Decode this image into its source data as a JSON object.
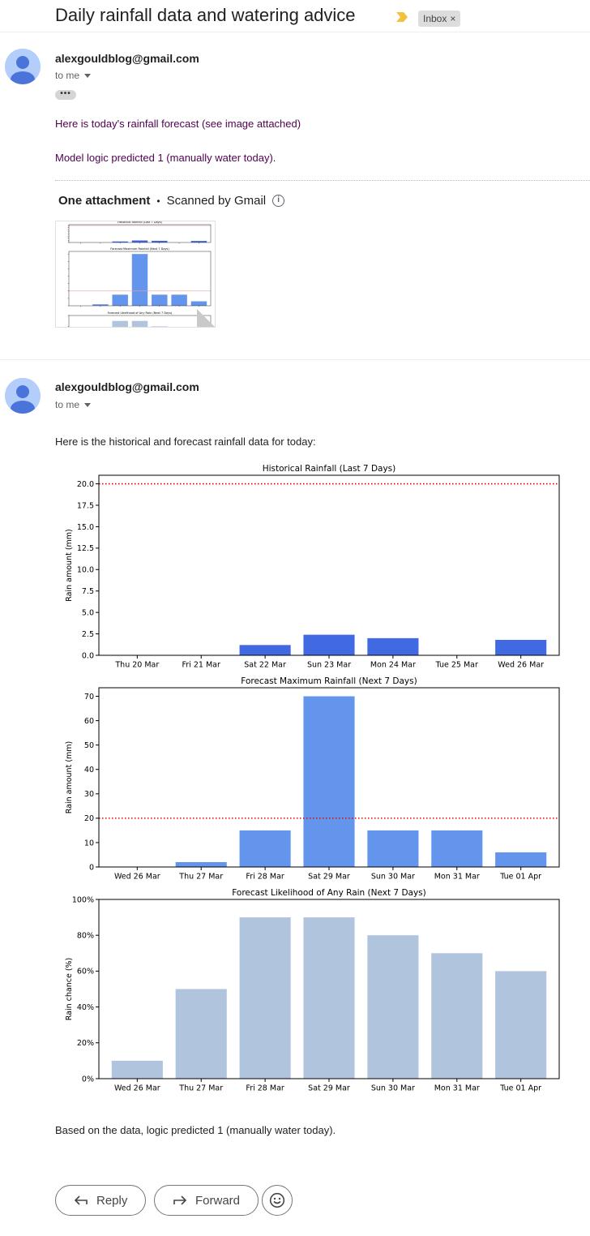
{
  "subject": "Daily rainfall data and watering advice",
  "label_chip": {
    "text": "Inbox",
    "close": "×"
  },
  "colors": {
    "importance": "#f2c13e",
    "link_text": "#500050",
    "hist_bar": "#4169e1",
    "fc_bar": "#6495ed",
    "prob_bar": "#b0c4de",
    "threshold": "#e00000"
  },
  "messages": [
    {
      "sender": "alexgouldblog@gmail.com",
      "to": "to me",
      "ellipsis": "•••",
      "lines": [
        "Here is today's rainfall forecast (see image attached)",
        "Model logic predicted 1 (manually water today)."
      ],
      "attachment": {
        "title": "One attachment",
        "separator": "•",
        "scan": "Scanned by Gmail",
        "info_icon": "info-icon"
      }
    },
    {
      "sender": "alexgouldblog@gmail.com",
      "to": "to me",
      "intro": "Here is the historical and forecast rainfall data for today:",
      "conclusion": "Based on the data, logic predicted 1 (manually water today)."
    }
  ],
  "actions": {
    "reply": "Reply",
    "forward": "Forward",
    "emoji_icon": "smiley-icon"
  },
  "chart_data": [
    {
      "type": "bar",
      "title": "Historical Rainfall (Last 7 Days)",
      "ylabel": "Rain amount (mm)",
      "categories": [
        "Thu 20 Mar",
        "Fri 21 Mar",
        "Sat 22 Mar",
        "Sun 23 Mar",
        "Mon 24 Mar",
        "Tue 25 Mar",
        "Wed 26 Mar"
      ],
      "values": [
        0,
        0,
        1.2,
        2.4,
        2.0,
        0,
        1.8
      ],
      "ylim": [
        0,
        21
      ],
      "yticks": [
        0,
        2.5,
        5,
        7.5,
        10,
        12.5,
        15,
        17.5,
        20
      ],
      "ytick_labels": [
        "0.0",
        "2.5",
        "5.0",
        "7.5",
        "10.0",
        "12.5",
        "15.0",
        "17.5",
        "20.0"
      ],
      "threshold": 20,
      "grid": false
    },
    {
      "type": "bar",
      "title": "Forecast Maximum Rainfall (Next 7 Days)",
      "ylabel": "Rain amount (mm)",
      "categories": [
        "Wed 26 Mar",
        "Thu 27 Mar",
        "Fri 28 Mar",
        "Sat 29 Mar",
        "Sun 30 Mar",
        "Mon 31 Mar",
        "Tue 01 Apr"
      ],
      "values": [
        0,
        2,
        15,
        70,
        15,
        15,
        6
      ],
      "ylim": [
        0,
        73.5
      ],
      "yticks": [
        0,
        10,
        20,
        30,
        40,
        50,
        60,
        70
      ],
      "ytick_labels": [
        "0",
        "10",
        "20",
        "30",
        "40",
        "50",
        "60",
        "70"
      ],
      "threshold": 20,
      "grid": false
    },
    {
      "type": "bar",
      "title": "Forecast Likelihood of Any Rain (Next 7 Days)",
      "ylabel": "Rain chance (%)",
      "categories": [
        "Wed 26 Mar",
        "Thu 27 Mar",
        "Fri 28 Mar",
        "Sat 29 Mar",
        "Sun 30 Mar",
        "Mon 31 Mar",
        "Tue 01 Apr"
      ],
      "values": [
        10,
        50,
        90,
        90,
        80,
        70,
        60
      ],
      "ylim": [
        0,
        100
      ],
      "yticks": [
        0,
        20,
        40,
        60,
        80,
        100
      ],
      "ytick_labels": [
        "0%",
        "20%",
        "40%",
        "60%",
        "80%",
        "100%"
      ],
      "threshold": null,
      "grid": false
    }
  ]
}
